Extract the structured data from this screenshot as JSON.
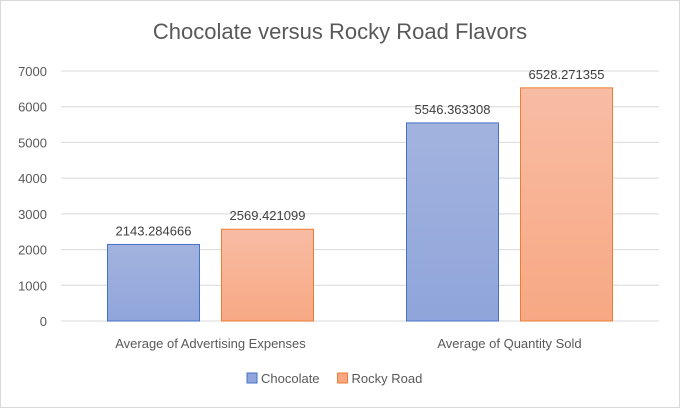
{
  "chart_data": {
    "type": "bar",
    "title": "Chocolate versus Rocky Road Flavors",
    "categories": [
      "Average of Advertising Expenses",
      "Average of Quantity Sold"
    ],
    "series": [
      {
        "name": "Chocolate",
        "values": [
          2143.284666,
          5546.363308
        ],
        "labels": [
          "2143.284666",
          "5546.363308"
        ],
        "color": "#8fa5db",
        "color_light": "#a3b3de",
        "border": "#4472c4"
      },
      {
        "name": "Rocky Road",
        "values": [
          2569.421099,
          6528.271355
        ],
        "labels": [
          "2569.421099",
          "6528.271355"
        ],
        "color": "#f7a883",
        "color_light": "#f8bca4",
        "border": "#ed7d31"
      }
    ],
    "yticks": [
      "0",
      "1000",
      "2000",
      "3000",
      "4000",
      "5000",
      "6000",
      "7000"
    ],
    "ylim": [
      0,
      7000
    ],
    "grid": true,
    "legend_position": "bottom"
  }
}
